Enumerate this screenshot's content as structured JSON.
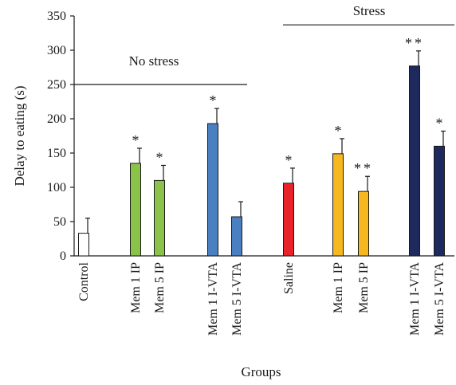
{
  "chart_data": {
    "type": "bar",
    "title": "",
    "xlabel": "Groups",
    "ylabel": "Delay to eating (s)",
    "ylim": [
      0,
      350
    ],
    "yticks": [
      0,
      50,
      100,
      150,
      200,
      250,
      300,
      350
    ],
    "grid": false,
    "legend": "none",
    "categories": [
      "Control",
      "Mem 1 IP",
      "Mem 5 IP",
      "Mem 1 I-VTA",
      "Mem 5 I-VTA",
      "Saline",
      "Mem 1 IP",
      "Mem 5 IP",
      "Mem 1 I-VTA",
      "Mem 5 I-VTA"
    ],
    "values": [
      33,
      135,
      110,
      193,
      57,
      106,
      149,
      94,
      277,
      160
    ],
    "error": [
      22,
      22,
      22,
      22,
      22,
      22,
      22,
      22,
      22,
      22
    ],
    "significance": [
      "",
      "*",
      "*",
      "*",
      "",
      "*",
      "*",
      "**",
      "**",
      "*"
    ],
    "colors": [
      "#ffffff",
      "#8bc34a",
      "#8bc34a",
      "#4a7fc1",
      "#4a7fc1",
      "#e8232a",
      "#f5b820",
      "#f5b820",
      "#1e2a5e",
      "#1e2a5e"
    ],
    "group_labels": [
      {
        "label": "No stress",
        "y": 250
      },
      {
        "label": "Stress",
        "y": 337
      }
    ]
  }
}
